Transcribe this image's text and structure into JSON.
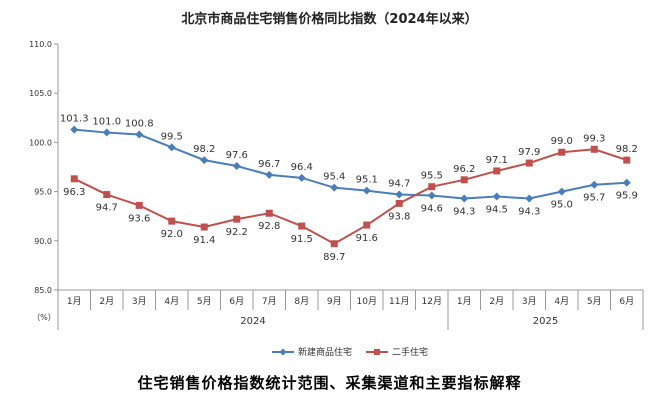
{
  "caption": "住宅销售价格指数统计范围、采集渠道和主要指标解释",
  "chart_data": {
    "type": "line",
    "title": "北京市商品住宅销售价格同比指数（2024年以来）",
    "ylabel": "（%）",
    "ylim": [
      85.0,
      110.0
    ],
    "yticks": [
      "110.0",
      "105.0",
      "100.0",
      "95.0",
      "90.0",
      "85.0"
    ],
    "grid": false,
    "legend_position": "bottom-center",
    "categories": [
      "1月",
      "2月",
      "3月",
      "4月",
      "5月",
      "6月",
      "7月",
      "8月",
      "9月",
      "10月",
      "11月",
      "12月",
      "1月",
      "2月",
      "3月",
      "4月",
      "5月",
      "6月"
    ],
    "year_groups": [
      {
        "label": "2024",
        "count": 12
      },
      {
        "label": "2025",
        "count": 6
      }
    ],
    "series": [
      {
        "name": "新建商品住宅",
        "color": "#4a7ebb",
        "marker": "diamond",
        "values": [
          101.3,
          101.0,
          100.8,
          99.5,
          98.2,
          97.6,
          96.7,
          96.4,
          95.4,
          95.1,
          94.7,
          94.6,
          94.3,
          94.5,
          94.3,
          95.0,
          95.7,
          95.9
        ],
        "labels": [
          "101.3",
          "101.0",
          "100.8",
          "99.5",
          "98.2",
          "97.6",
          "96.7",
          "96.4",
          "95.4",
          "95.1",
          "94.7",
          "94.6",
          "94.3",
          "94.5",
          "94.3",
          "95.0",
          "95.7",
          "95.9"
        ]
      },
      {
        "name": "二手住宅",
        "color": "#c0504d",
        "marker": "square",
        "values": [
          96.3,
          94.7,
          93.6,
          92.0,
          91.4,
          92.2,
          92.8,
          91.5,
          89.7,
          91.6,
          93.8,
          95.5,
          96.2,
          97.1,
          97.9,
          99.0,
          99.3,
          98.2
        ],
        "labels": [
          "96.3",
          "94.7",
          "93.6",
          "92.0",
          "91.4",
          "92.2",
          "92.8",
          "91.5",
          "89.7",
          "91.6",
          "93.8",
          "95.5",
          "96.2",
          "97.1",
          "97.9",
          "99.0",
          "99.3",
          "98.2"
        ]
      }
    ]
  }
}
